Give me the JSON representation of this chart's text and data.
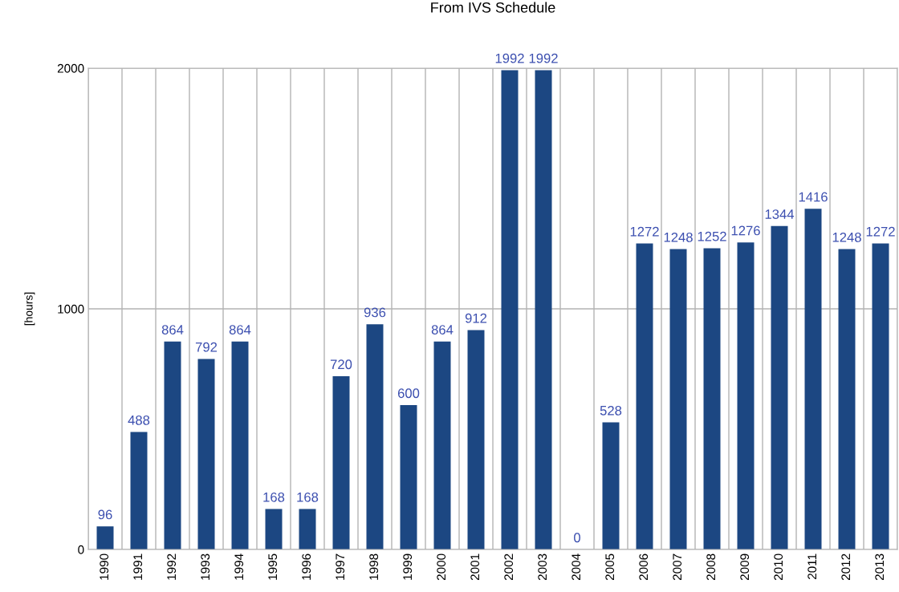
{
  "chart_data": {
    "type": "bar",
    "title": "From IVS Schedule",
    "ylabel": "[hours]",
    "categories": [
      "1990",
      "1991",
      "1992",
      "1993",
      "1994",
      "1995",
      "1996",
      "1997",
      "1998",
      "1999",
      "2000",
      "2001",
      "2002",
      "2003",
      "2004",
      "2005",
      "2006",
      "2007",
      "2008",
      "2009",
      "2010",
      "2011",
      "2012",
      "2013"
    ],
    "values": [
      96,
      488,
      864,
      792,
      864,
      168,
      168,
      720,
      936,
      600,
      864,
      912,
      1992,
      1992,
      0,
      528,
      1272,
      1248,
      1252,
      1276,
      1344,
      1416,
      1248,
      1272
    ],
    "color": "#1c4782",
    "ylim": [
      0,
      2000
    ],
    "yticks": [
      0,
      1000,
      2000
    ],
    "grid": true,
    "data_labels": true
  }
}
